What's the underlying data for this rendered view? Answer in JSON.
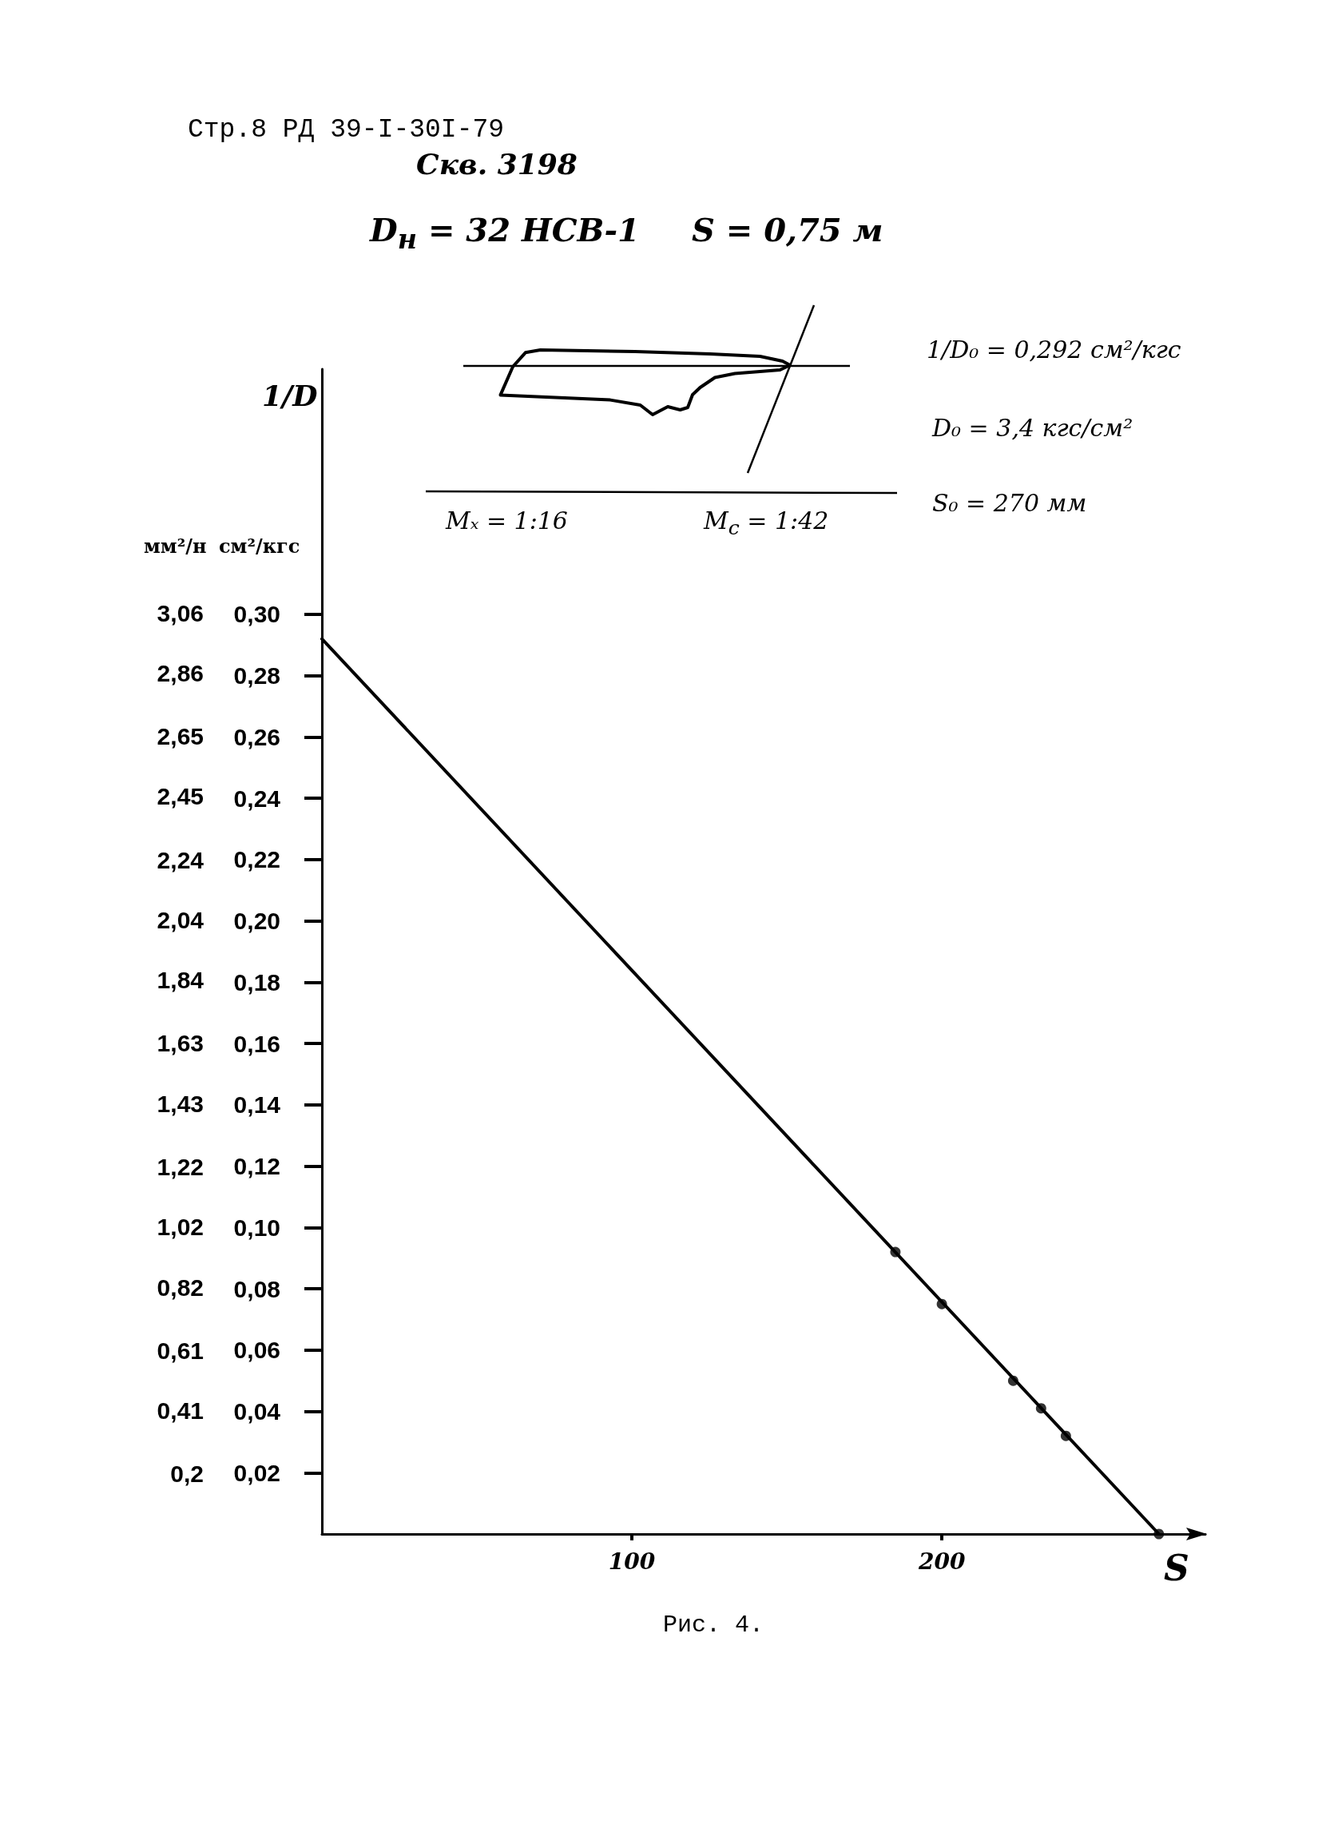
{
  "chart_data": {
    "type": "line",
    "title": "Скв. 3198",
    "subtitle": "D$_{н}$ = 32 НСВ-1",
    "xlabel": "S",
    "ylabel": "см²/кгс",
    "y2label": "мм²/н",
    "annotations": [
      "Стр.8 РД 39-I-30I-79",
      "S = 0,75 м",
      "1/D₀ = 0,292 см²/кгс",
      "D₀ = 3,4 кгс/см²",
      "S₀ = 270 мм",
      "Mₓ = 1:16",
      "M$_{c}$ = 1:42",
      "1/D",
      "Рис. 4."
    ],
    "series": [
      {
        "color": "#000000",
        "x": [
          0,
          270
        ],
        "values": [
          0.292,
          0
        ]
      },
      {
        "type": "scatter",
        "marker": "circle",
        "color": "#000000",
        "x": [
          185,
          200,
          223,
          232,
          240,
          270
        ],
        "values": [
          0.092,
          0.075,
          0.05,
          0.041,
          0.032,
          0
        ]
      }
    ],
    "xlim": [
      0,
      285
    ],
    "xticks": [
      100,
      200
    ],
    "ylim": [
      0,
      0.38
    ],
    "yticks": [
      {
        "value": 0.02,
        "label": "0,02"
      },
      {
        "value": 0.04,
        "label": "0,04"
      },
      {
        "value": 0.06,
        "label": "0,06"
      },
      {
        "value": 0.08,
        "label": "0,08"
      },
      {
        "value": 0.1,
        "label": "0,10"
      },
      {
        "value": 0.12,
        "label": "0,12"
      },
      {
        "value": 0.14,
        "label": "0,14"
      },
      {
        "value": 0.16,
        "label": "0,16"
      },
      {
        "value": 0.18,
        "label": "0,18"
      },
      {
        "value": 0.2,
        "label": "0,20"
      },
      {
        "value": 0.22,
        "label": "0,22"
      },
      {
        "value": 0.24,
        "label": "0,24"
      },
      {
        "value": 0.26,
        "label": "0,26"
      },
      {
        "value": 0.28,
        "label": "0,28"
      },
      {
        "value": 0.3,
        "label": "0,30"
      }
    ],
    "y2lim": [
      0,
      3.87
    ],
    "y2ticks": [
      {
        "value": 0.2,
        "label": "0,2"
      },
      {
        "value": 0.41,
        "label": "0,41"
      },
      {
        "value": 0.61,
        "label": "0,61"
      },
      {
        "value": 0.82,
        "label": "0,82"
      },
      {
        "value": 1.02,
        "label": "1,02"
      },
      {
        "value": 1.22,
        "label": "1,22"
      },
      {
        "value": 1.43,
        "label": "1,43"
      },
      {
        "value": 1.63,
        "label": "1,63"
      },
      {
        "value": 1.84,
        "label": "1,84"
      },
      {
        "value": 2.04,
        "label": "2,04"
      },
      {
        "value": 2.24,
        "label": "2,24"
      },
      {
        "value": 2.45,
        "label": "2,45"
      },
      {
        "value": 2.65,
        "label": "2,65"
      },
      {
        "value": 2.86,
        "label": "2,86"
      },
      {
        "value": 3.06,
        "label": "3,06"
      }
    ]
  }
}
